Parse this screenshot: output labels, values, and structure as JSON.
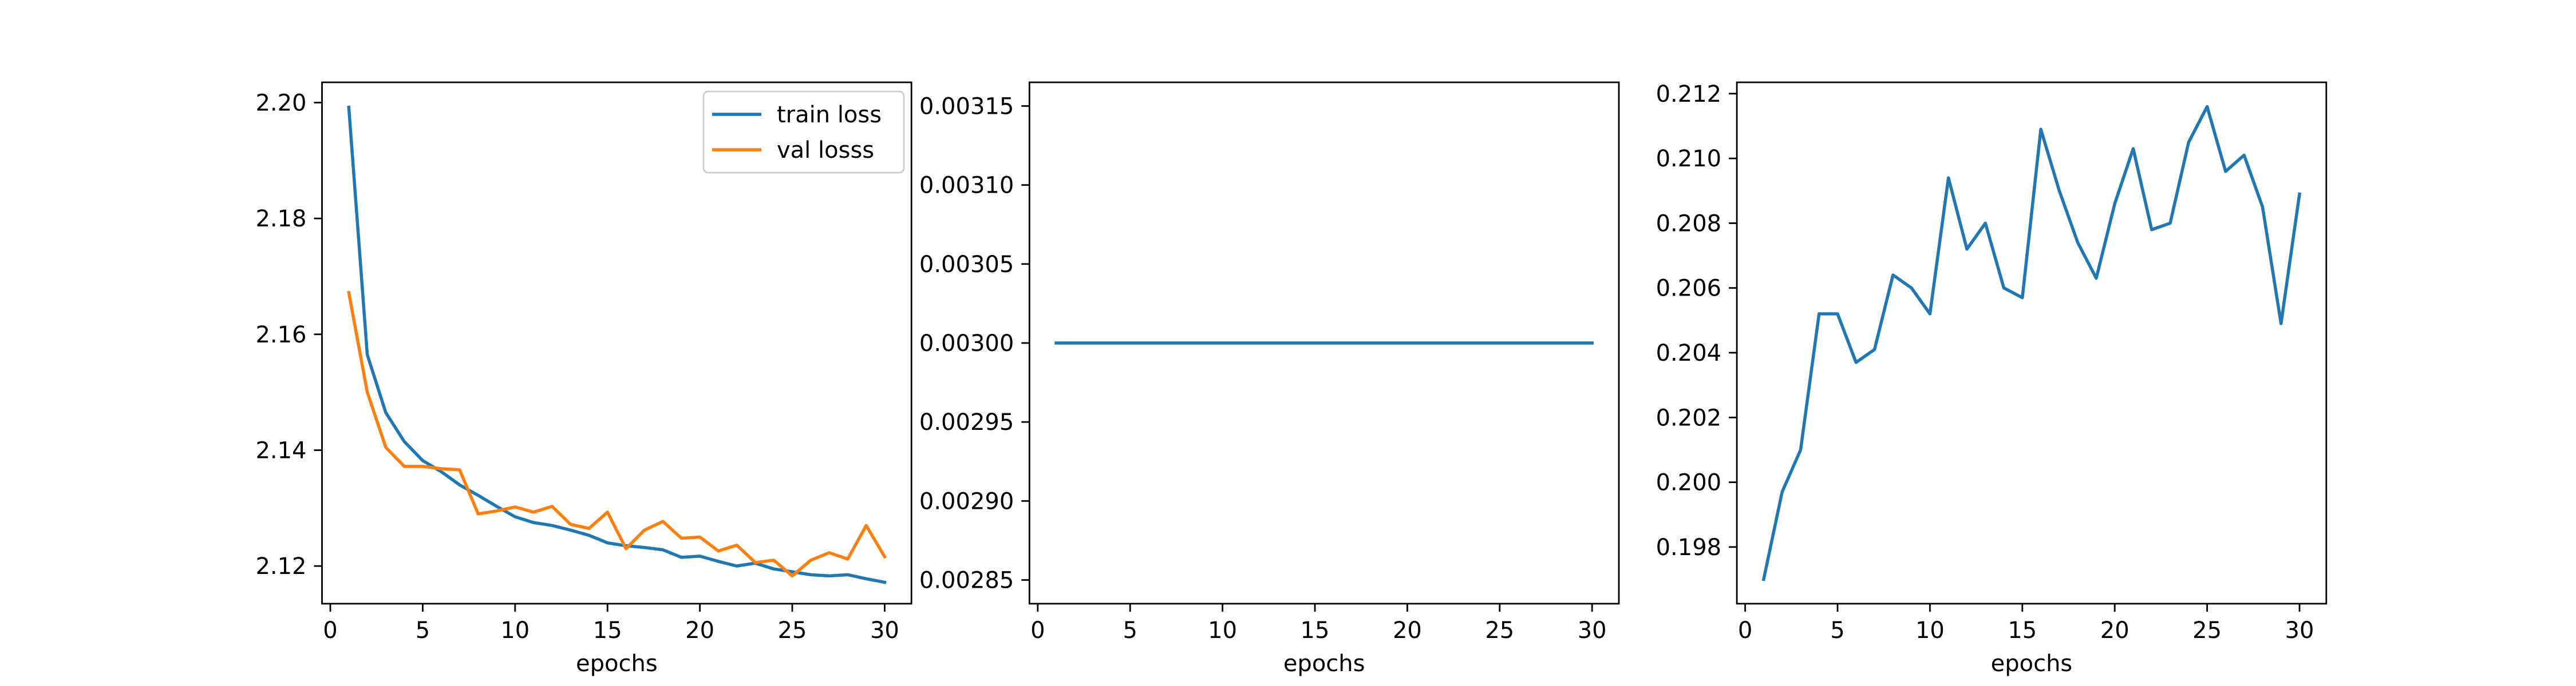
{
  "chart_data": [
    {
      "type": "line",
      "xlabel": "epochs",
      "ylabel": "",
      "title": "",
      "xlim": [
        -0.45,
        31.45
      ],
      "ylim": [
        2.1135,
        2.2035
      ],
      "xticks": [
        0,
        5,
        10,
        15,
        20,
        25,
        30
      ],
      "xtick_labels": [
        "0",
        "5",
        "10",
        "15",
        "20",
        "25",
        "30"
      ],
      "yticks": [
        2.12,
        2.14,
        2.16,
        2.18,
        2.2
      ],
      "ytick_labels": [
        "2.12",
        "2.14",
        "2.16",
        "2.18",
        "2.20"
      ],
      "grid": false,
      "legend": "top-right",
      "x": [
        1,
        2,
        3,
        4,
        5,
        6,
        7,
        8,
        9,
        10,
        11,
        12,
        13,
        14,
        15,
        16,
        17,
        18,
        19,
        20,
        21,
        22,
        23,
        24,
        25,
        26,
        27,
        28,
        29,
        30
      ],
      "series": [
        {
          "name": "train loss",
          "color": "#1f77b4",
          "values": [
            2.1992,
            2.1565,
            2.1465,
            2.1415,
            2.1382,
            2.1363,
            2.134,
            2.1322,
            2.1303,
            2.1285,
            2.1275,
            2.127,
            2.1262,
            2.1253,
            2.124,
            2.1235,
            2.1232,
            2.1228,
            2.1215,
            2.1217,
            2.1208,
            2.12,
            2.1205,
            2.1195,
            2.119,
            2.1185,
            2.1183,
            2.1185,
            2.1178,
            2.1172
          ]
        },
        {
          "name": "val losss",
          "color": "#ff7f0e",
          "values": [
            2.1672,
            2.15,
            2.1405,
            2.1372,
            2.1372,
            2.1368,
            2.1366,
            2.129,
            2.1295,
            2.1302,
            2.1293,
            2.1303,
            2.1272,
            2.1265,
            2.1293,
            2.123,
            2.1262,
            2.1277,
            2.1248,
            2.125,
            2.1226,
            2.1236,
            2.1206,
            2.121,
            2.1183,
            2.121,
            2.1223,
            2.1212,
            2.127,
            2.1216
          ]
        }
      ]
    },
    {
      "type": "line",
      "xlabel": "epochs",
      "ylabel": "",
      "title": "",
      "xlim": [
        -0.45,
        31.45
      ],
      "ylim": [
        0.002835,
        0.003165
      ],
      "xticks": [
        0,
        5,
        10,
        15,
        20,
        25,
        30
      ],
      "xtick_labels": [
        "0",
        "5",
        "10",
        "15",
        "20",
        "25",
        "30"
      ],
      "yticks": [
        0.00285,
        0.0029,
        0.00295,
        0.003,
        0.00305,
        0.0031,
        0.00315
      ],
      "ytick_labels": [
        "0.00285",
        "0.00290",
        "0.00295",
        "0.00300",
        "0.00305",
        "0.00310",
        "0.00315"
      ],
      "grid": false,
      "x": [
        1,
        2,
        3,
        4,
        5,
        6,
        7,
        8,
        9,
        10,
        11,
        12,
        13,
        14,
        15,
        16,
        17,
        18,
        19,
        20,
        21,
        22,
        23,
        24,
        25,
        26,
        27,
        28,
        29,
        30
      ],
      "series": [
        {
          "color": "#1f77b4",
          "values": [
            0.003,
            0.003,
            0.003,
            0.003,
            0.003,
            0.003,
            0.003,
            0.003,
            0.003,
            0.003,
            0.003,
            0.003,
            0.003,
            0.003,
            0.003,
            0.003,
            0.003,
            0.003,
            0.003,
            0.003,
            0.003,
            0.003,
            0.003,
            0.003,
            0.003,
            0.003,
            0.003,
            0.003,
            0.003,
            0.003
          ]
        }
      ]
    },
    {
      "type": "line",
      "xlabel": "epochs",
      "ylabel": "",
      "title": "",
      "xlim": [
        -0.45,
        31.45
      ],
      "ylim": [
        0.19625,
        0.21235
      ],
      "xticks": [
        0,
        5,
        10,
        15,
        20,
        25,
        30
      ],
      "xtick_labels": [
        "0",
        "5",
        "10",
        "15",
        "20",
        "25",
        "30"
      ],
      "yticks": [
        0.198,
        0.2,
        0.202,
        0.204,
        0.206,
        0.208,
        0.21,
        0.212
      ],
      "ytick_labels": [
        "0.198",
        "0.200",
        "0.202",
        "0.204",
        "0.206",
        "0.208",
        "0.210",
        "0.212"
      ],
      "grid": false,
      "x": [
        1,
        2,
        3,
        4,
        5,
        6,
        7,
        8,
        9,
        10,
        11,
        12,
        13,
        14,
        15,
        16,
        17,
        18,
        19,
        20,
        21,
        22,
        23,
        24,
        25,
        26,
        27,
        28,
        29,
        30
      ],
      "series": [
        {
          "color": "#1f77b4",
          "values": [
            0.197,
            0.1997,
            0.201,
            0.2052,
            0.2052,
            0.2037,
            0.2041,
            0.2064,
            0.206,
            0.2052,
            0.2094,
            0.2072,
            0.208,
            0.206,
            0.2057,
            0.2109,
            0.209,
            0.2074,
            0.2063,
            0.2086,
            0.2103,
            0.2078,
            0.208,
            0.2105,
            0.2116,
            0.2096,
            0.2101,
            0.2085,
            0.2049,
            0.2089
          ]
        }
      ]
    }
  ]
}
